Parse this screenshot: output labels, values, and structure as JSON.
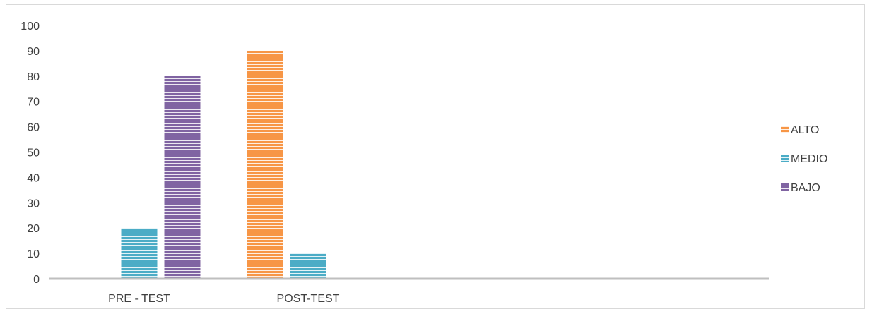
{
  "chart_data": {
    "type": "bar",
    "categories": [
      "PRE - TEST",
      "POST-TEST"
    ],
    "series": [
      {
        "name": "ALTO",
        "values": [
          0,
          90
        ],
        "color": "#f79646"
      },
      {
        "name": "MEDIO",
        "values": [
          20,
          10
        ],
        "color": "#4bacc6"
      },
      {
        "name": "BAJO",
        "values": [
          80,
          0
        ],
        "color": "#8064a2"
      }
    ],
    "y_ticks": [
      "0",
      "10",
      "20",
      "30",
      "40",
      "50",
      "60",
      "70",
      "80",
      "90",
      "100"
    ],
    "ylim": [
      0,
      100
    ],
    "grid": false,
    "legend_position": "right",
    "bar_fill": "horizontal-stripes"
  }
}
